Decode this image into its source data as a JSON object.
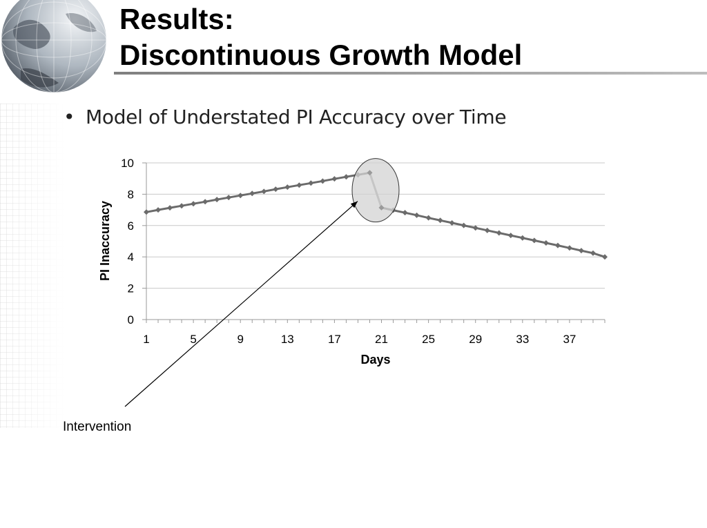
{
  "slide": {
    "title_line1": "Results:",
    "title_line2": "Discontinuous Growth Model",
    "bullet": "Model of Understated PI Accuracy over Time",
    "annotation": "Intervention"
  },
  "icons": {
    "globe": "globe-icon"
  },
  "colors": {
    "series": "#6b6b6b",
    "post_series": "#9a9a9a",
    "grid": "#c8c8c8",
    "highlight": "#d3d3d3"
  },
  "chart_data": {
    "type": "line",
    "xlabel": "Days",
    "ylabel": "PI Inaccuracy",
    "ylim": [
      0,
      10
    ],
    "yticks": [
      0,
      2,
      4,
      6,
      8,
      10
    ],
    "xticks": [
      1,
      5,
      9,
      13,
      17,
      21,
      25,
      29,
      33,
      37
    ],
    "grid": true,
    "x": [
      1,
      2,
      3,
      4,
      5,
      6,
      7,
      8,
      9,
      10,
      11,
      12,
      13,
      14,
      15,
      16,
      17,
      18,
      19,
      20,
      21,
      22,
      23,
      24,
      25,
      26,
      27,
      28,
      29,
      30,
      31,
      32,
      33,
      34,
      35,
      36,
      37,
      38,
      39,
      40
    ],
    "series": [
      {
        "values": [
          6.86,
          7.0,
          7.13,
          7.26,
          7.39,
          7.52,
          7.66,
          7.79,
          7.92,
          8.05,
          8.18,
          8.32,
          8.45,
          8.58,
          8.71,
          8.84,
          8.98,
          9.11,
          9.24,
          9.37,
          7.14,
          6.98,
          6.82,
          6.66,
          6.49,
          6.33,
          6.17,
          6.01,
          5.85,
          5.69,
          5.53,
          5.37,
          5.21,
          5.05,
          4.89,
          4.73,
          4.57,
          4.4,
          4.24,
          4.0
        ]
      }
    ],
    "highlight_around_x": [
      20,
      21
    ]
  }
}
